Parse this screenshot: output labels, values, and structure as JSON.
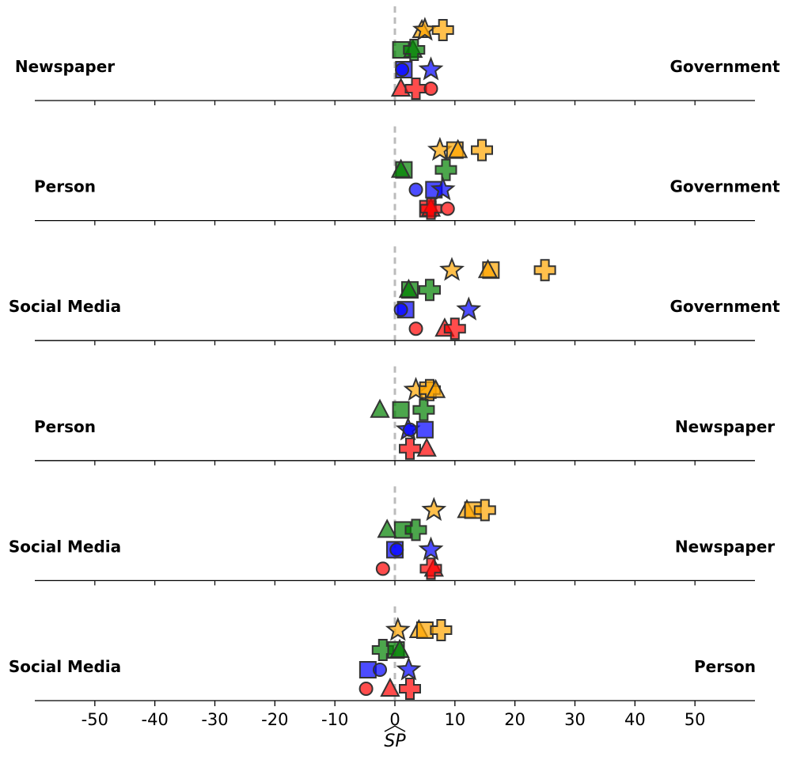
{
  "chart_data": {
    "type": "scatter",
    "xlabel": "SP",
    "xlim": [
      -60,
      60
    ],
    "xticks": [
      -50,
      -40,
      -30,
      -20,
      -10,
      0,
      10,
      20,
      30,
      40,
      50
    ],
    "reference_line_x": 0,
    "lanes": [
      "yellow",
      "green",
      "blue",
      "red"
    ],
    "colors": {
      "yellow": "#FFA500",
      "green": "#008000",
      "blue": "#0000FF",
      "red": "#FF0000"
    },
    "marker_types": [
      "circle",
      "square",
      "triangle",
      "star",
      "plus"
    ],
    "rows": [
      {
        "left": "Newspaper",
        "right": "Government",
        "points": [
          {
            "lane": "yellow",
            "marker": "triangle",
            "x": 4.5
          },
          {
            "lane": "yellow",
            "marker": "star",
            "x": 5
          },
          {
            "lane": "yellow",
            "marker": "plus",
            "x": 8
          },
          {
            "lane": "green",
            "marker": "square",
            "x": 1
          },
          {
            "lane": "green",
            "marker": "triangle",
            "x": 3
          },
          {
            "lane": "green",
            "marker": "plus",
            "x": 3.2
          },
          {
            "lane": "blue",
            "marker": "square",
            "x": 1.5
          },
          {
            "lane": "blue",
            "marker": "circle",
            "x": 1.2
          },
          {
            "lane": "blue",
            "marker": "star",
            "x": 6
          },
          {
            "lane": "red",
            "marker": "triangle",
            "x": 1
          },
          {
            "lane": "red",
            "marker": "plus",
            "x": 3.5
          },
          {
            "lane": "red",
            "marker": "circle",
            "x": 6
          }
        ]
      },
      {
        "left": "Person",
        "right": "Government",
        "points": [
          {
            "lane": "yellow",
            "marker": "star",
            "x": 7.5
          },
          {
            "lane": "yellow",
            "marker": "square",
            "x": 10
          },
          {
            "lane": "yellow",
            "marker": "triangle",
            "x": 10.5
          },
          {
            "lane": "yellow",
            "marker": "plus",
            "x": 14.5
          },
          {
            "lane": "green",
            "marker": "square",
            "x": 1.5
          },
          {
            "lane": "green",
            "marker": "triangle",
            "x": 1
          },
          {
            "lane": "green",
            "marker": "plus",
            "x": 8.5
          },
          {
            "lane": "blue",
            "marker": "circle",
            "x": 3.5
          },
          {
            "lane": "blue",
            "marker": "square",
            "x": 6.5
          },
          {
            "lane": "blue",
            "marker": "star",
            "x": 8
          },
          {
            "lane": "red",
            "marker": "square",
            "x": 5.5
          },
          {
            "lane": "red",
            "marker": "triangle",
            "x": 6
          },
          {
            "lane": "red",
            "marker": "plus",
            "x": 6
          },
          {
            "lane": "red",
            "marker": "circle",
            "x": 8.8
          }
        ]
      },
      {
        "left": "Social Media",
        "right": "Government",
        "points": [
          {
            "lane": "yellow",
            "marker": "star",
            "x": 9.5
          },
          {
            "lane": "yellow",
            "marker": "square",
            "x": 16
          },
          {
            "lane": "yellow",
            "marker": "triangle",
            "x": 15.5
          },
          {
            "lane": "yellow",
            "marker": "plus",
            "x": 25
          },
          {
            "lane": "green",
            "marker": "square",
            "x": 2.5
          },
          {
            "lane": "green",
            "marker": "triangle",
            "x": 2.3
          },
          {
            "lane": "green",
            "marker": "plus",
            "x": 5.8
          },
          {
            "lane": "blue",
            "marker": "square",
            "x": 1.8
          },
          {
            "lane": "blue",
            "marker": "circle",
            "x": 1
          },
          {
            "lane": "blue",
            "marker": "star",
            "x": 12.3
          },
          {
            "lane": "red",
            "marker": "circle",
            "x": 3.5
          },
          {
            "lane": "red",
            "marker": "triangle",
            "x": 8.3
          },
          {
            "lane": "red",
            "marker": "plus",
            "x": 10
          }
        ]
      },
      {
        "left": "Person",
        "right": "Newspaper",
        "points": [
          {
            "lane": "yellow",
            "marker": "star",
            "x": 3.5
          },
          {
            "lane": "yellow",
            "marker": "square",
            "x": 5.5
          },
          {
            "lane": "yellow",
            "marker": "plus",
            "x": 5.8
          },
          {
            "lane": "yellow",
            "marker": "triangle",
            "x": 6.8
          },
          {
            "lane": "green",
            "marker": "triangle",
            "x": -2.5
          },
          {
            "lane": "green",
            "marker": "square",
            "x": 1
          },
          {
            "lane": "green",
            "marker": "plus",
            "x": 4.8
          },
          {
            "lane": "blue",
            "marker": "star",
            "x": 2.2
          },
          {
            "lane": "blue",
            "marker": "circle",
            "x": 2.5
          },
          {
            "lane": "blue",
            "marker": "square",
            "x": 5
          },
          {
            "lane": "red",
            "marker": "plus",
            "x": 2.5
          },
          {
            "lane": "red",
            "marker": "triangle",
            "x": 5.3
          }
        ]
      },
      {
        "left": "Social Media",
        "right": "Newspaper",
        "points": [
          {
            "lane": "yellow",
            "marker": "star",
            "x": 6.5
          },
          {
            "lane": "yellow",
            "marker": "triangle",
            "x": 12
          },
          {
            "lane": "yellow",
            "marker": "square",
            "x": 13
          },
          {
            "lane": "yellow",
            "marker": "plus",
            "x": 15
          },
          {
            "lane": "green",
            "marker": "triangle",
            "x": -1.3
          },
          {
            "lane": "green",
            "marker": "square",
            "x": 1.3
          },
          {
            "lane": "green",
            "marker": "plus",
            "x": 3.5
          },
          {
            "lane": "blue",
            "marker": "square",
            "x": 0
          },
          {
            "lane": "blue",
            "marker": "circle",
            "x": 0.3
          },
          {
            "lane": "blue",
            "marker": "star",
            "x": 6
          },
          {
            "lane": "red",
            "marker": "circle",
            "x": -2
          },
          {
            "lane": "red",
            "marker": "triangle",
            "x": 6.5
          },
          {
            "lane": "red",
            "marker": "plus",
            "x": 6
          }
        ]
      },
      {
        "left": "Social Media",
        "right": "Person",
        "points": [
          {
            "lane": "yellow",
            "marker": "star",
            "x": 0.5
          },
          {
            "lane": "yellow",
            "marker": "triangle",
            "x": 4
          },
          {
            "lane": "yellow",
            "marker": "square",
            "x": 5
          },
          {
            "lane": "yellow",
            "marker": "plus",
            "x": 7.7
          },
          {
            "lane": "green",
            "marker": "plus",
            "x": -2
          },
          {
            "lane": "green",
            "marker": "square",
            "x": 0.2
          },
          {
            "lane": "green",
            "marker": "triangle",
            "x": 0.8
          },
          {
            "lane": "blue",
            "marker": "square",
            "x": -4.5
          },
          {
            "lane": "blue",
            "marker": "circle",
            "x": -2.5
          },
          {
            "lane": "blue",
            "marker": "star",
            "x": 2.3
          },
          {
            "lane": "red",
            "marker": "circle",
            "x": -4.8
          },
          {
            "lane": "red",
            "marker": "triangle",
            "x": -0.8
          },
          {
            "lane": "red",
            "marker": "plus",
            "x": 2.5
          }
        ]
      }
    ]
  }
}
